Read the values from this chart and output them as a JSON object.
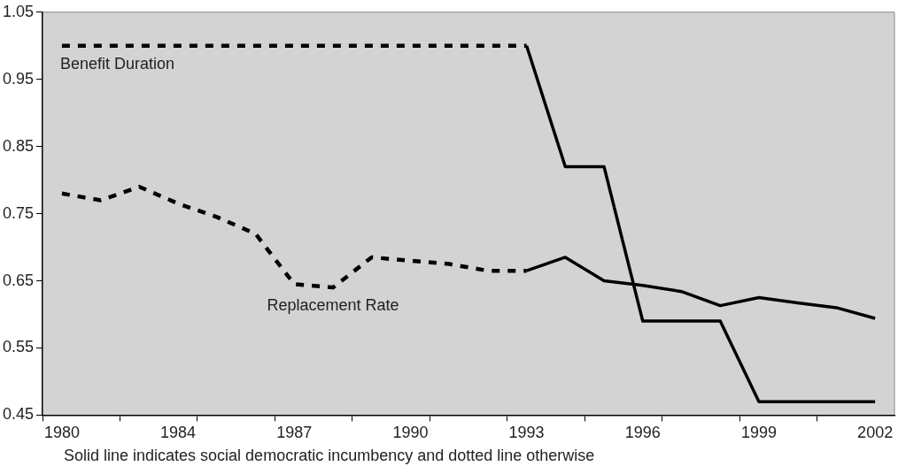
{
  "chart_data": {
    "type": "line",
    "categories": [
      "1980",
      null,
      null,
      "1984",
      null,
      null,
      "1987",
      null,
      null,
      "1990",
      null,
      null,
      "1993",
      null,
      null,
      "1996",
      null,
      null,
      "1999",
      null,
      null,
      "2002"
    ],
    "series": [
      {
        "name": "Benefit Duration",
        "color": "#000000",
        "line_style": "dashed",
        "values": [
          1.0,
          1.0,
          1.0,
          1.0,
          1.0,
          1.0,
          1.0,
          1.0,
          1.0,
          1.0,
          1.0,
          1.0,
          1.0,
          null,
          null,
          null,
          null,
          null,
          null,
          null,
          null,
          null
        ]
      },
      {
        "color": "#000000",
        "line_style": "solid",
        "values": [
          null,
          null,
          null,
          null,
          null,
          null,
          null,
          null,
          null,
          null,
          null,
          null,
          1.0,
          0.82,
          0.82,
          0.59,
          0.59,
          0.59,
          0.47,
          0.47,
          0.47,
          0.47
        ]
      },
      {
        "name": "Replacement Rate",
        "color": "#000000",
        "line_style": "dashed",
        "values": [
          0.78,
          0.77,
          0.79,
          0.765,
          0.745,
          0.72,
          0.645,
          0.64,
          0.685,
          0.68,
          0.675,
          0.665,
          0.665,
          null,
          null,
          null,
          null,
          null,
          null,
          null,
          null,
          null
        ]
      },
      {
        "color": "#000000",
        "line_style": "solid",
        "values": [
          null,
          null,
          null,
          null,
          null,
          null,
          null,
          null,
          null,
          null,
          null,
          null,
          0.665,
          0.685,
          0.65,
          0.643,
          0.634,
          0.613,
          0.625,
          0.617,
          0.61,
          0.594
        ]
      }
    ],
    "ylim": [
      0.45,
      1.05
    ],
    "yticks": [
      0.45,
      0.55,
      0.65,
      0.75,
      0.85,
      0.95,
      1.05
    ],
    "grid": false,
    "legend": false,
    "marker": "none",
    "annotations": [
      "Solid line indicates social democratic incumbency and dotted line otherwise"
    ]
  }
}
